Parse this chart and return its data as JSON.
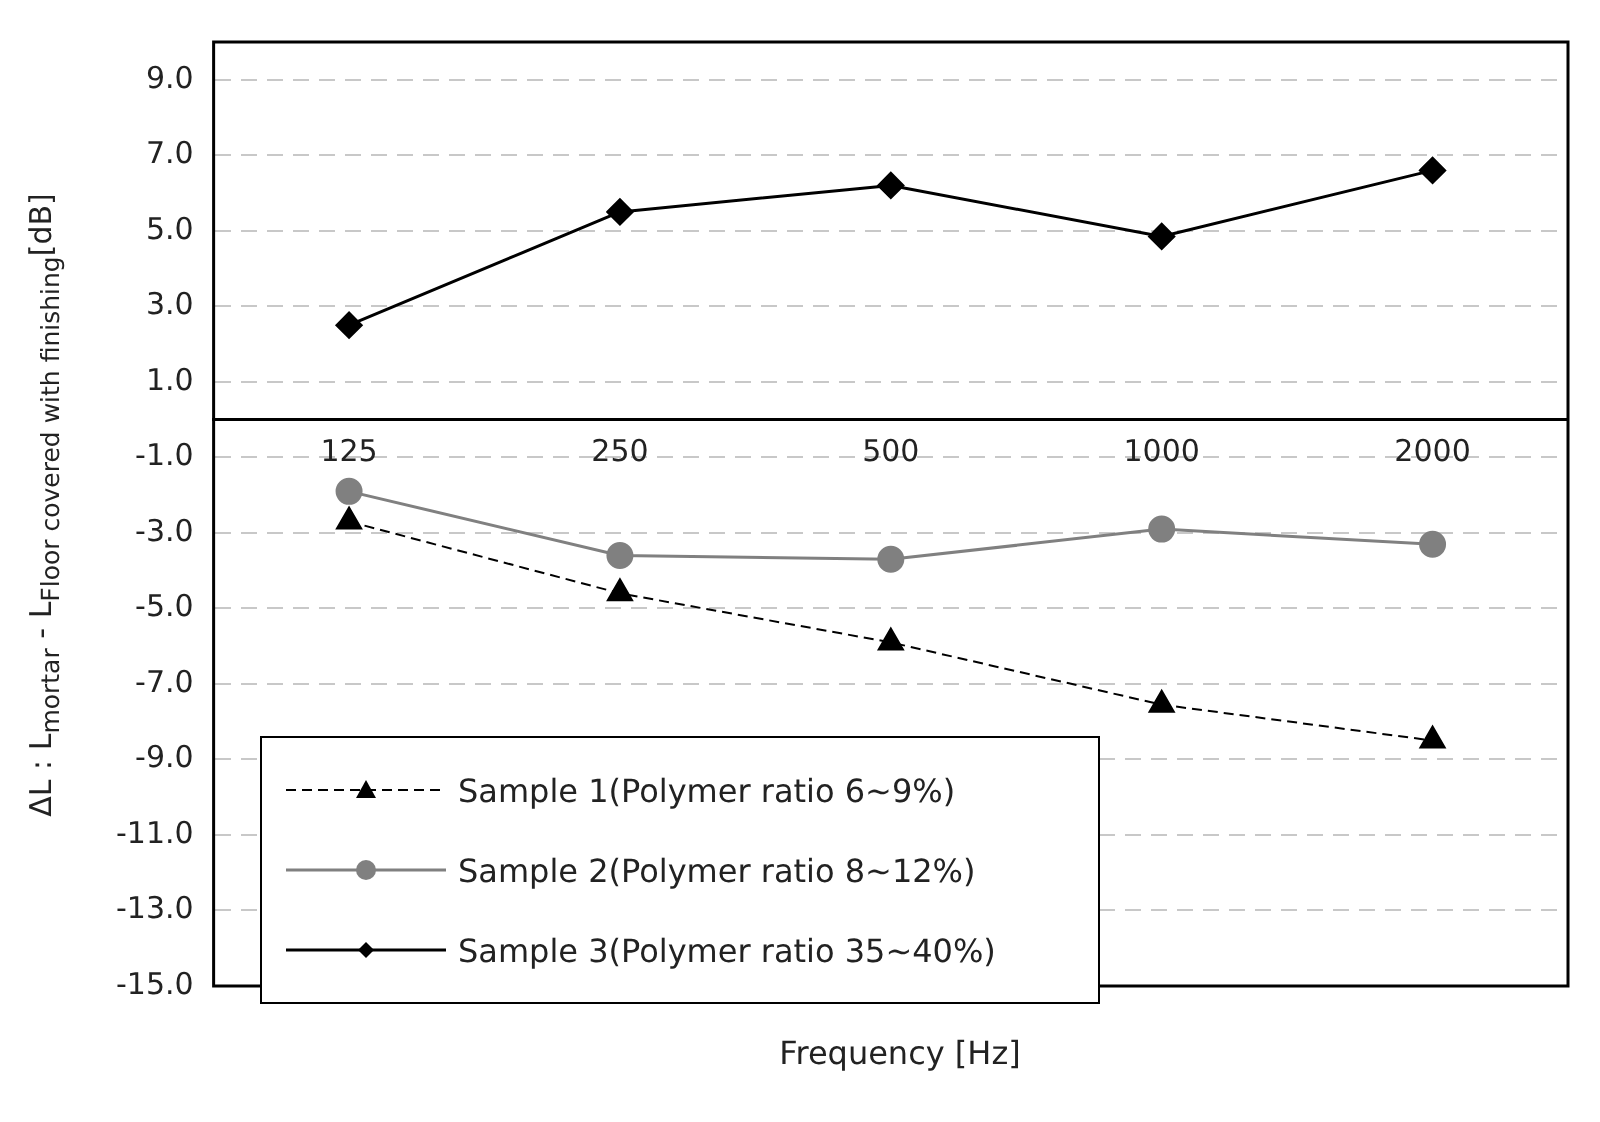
{
  "chart_data": {
    "type": "line",
    "xlabel": "Frequency [Hz]",
    "ylabel": "ΔL : L$_{mortar}$ - L$_{Floor covered with finishing}$[dB]",
    "categories": [
      "125",
      "250",
      "500",
      "1000",
      "2000"
    ],
    "series": [
      {
        "name": "Sample 1(Polymer ratio 6~9%)",
        "color": "#000000",
        "marker": "triangle",
        "line_style": "dashed",
        "values": [
          -2.7,
          -4.6,
          -5.9,
          -7.55,
          -8.5
        ]
      },
      {
        "name": "Sample 2(Polymer ratio 8~12%)",
        "color": "#808080",
        "marker": "circle",
        "line_style": "solid",
        "values": [
          -1.9,
          -3.6,
          -3.7,
          -2.9,
          -3.3
        ]
      },
      {
        "name": "Sample 3(Polymer ratio 35~40%)",
        "color": "#000000",
        "marker": "diamond",
        "line_style": "solid",
        "values": [
          2.5,
          5.5,
          6.2,
          4.85,
          6.6
        ]
      }
    ],
    "ylim": [
      -15,
      10
    ],
    "yticks": [
      {
        "value": 9,
        "label": "9.0"
      },
      {
        "value": 7,
        "label": "7.0"
      },
      {
        "value": 5,
        "label": "5.0"
      },
      {
        "value": 3,
        "label": "3.0"
      },
      {
        "value": 1,
        "label": "1.0"
      },
      {
        "value": -1,
        "label": "-1.0"
      },
      {
        "value": -3,
        "label": "-3.0"
      },
      {
        "value": -5,
        "label": "-5.0"
      },
      {
        "value": -7,
        "label": "-7.0"
      },
      {
        "value": -9,
        "label": "-9.0"
      },
      {
        "value": -11,
        "label": "-11.0"
      },
      {
        "value": -13,
        "label": "-13.0"
      },
      {
        "value": -15,
        "label": "-15.0"
      }
    ],
    "grid": "y",
    "legend": "bottom left"
  }
}
